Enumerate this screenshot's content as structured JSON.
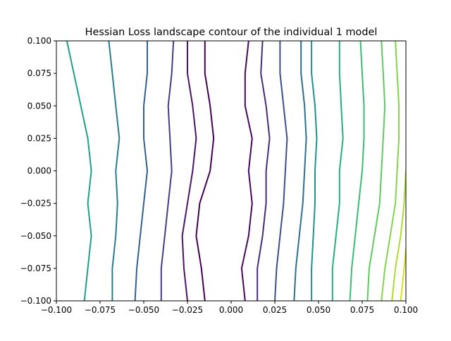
{
  "chart_data": {
    "type": "contour",
    "title": "Hessian Loss landscape contour of the individual 1 model",
    "xlabel": "",
    "ylabel": "",
    "xlim": [
      -0.1,
      0.1
    ],
    "ylim": [
      -0.1,
      0.1
    ],
    "xticks": [
      -0.1,
      -0.075,
      -0.05,
      -0.025,
      0.0,
      0.025,
      0.05,
      0.075,
      0.1
    ],
    "xtick_labels": [
      "−0.100",
      "−0.075",
      "−0.050",
      "−0.025",
      "0.000",
      "0.025",
      "0.050",
      "0.075",
      "0.100"
    ],
    "yticks": [
      -0.1,
      -0.075,
      -0.05,
      -0.025,
      0.0,
      0.025,
      0.05,
      0.075,
      0.1
    ],
    "ytick_labels": [
      "−0.100",
      "−0.075",
      "−0.050",
      "−0.025",
      "0.000",
      "0.025",
      "0.050",
      "0.075",
      "0.100"
    ],
    "colormap": "viridis",
    "grid": false,
    "levels": [
      {
        "level": 1,
        "color": "#440154",
        "points": [
          [
            -0.015,
            -0.1
          ],
          [
            -0.017,
            -0.075
          ],
          [
            -0.02,
            -0.05
          ],
          [
            -0.018,
            -0.025
          ],
          [
            -0.012,
            0.0
          ],
          [
            -0.01,
            0.025
          ],
          [
            -0.012,
            0.05
          ],
          [
            -0.015,
            0.075
          ],
          [
            -0.015,
            0.1
          ]
        ]
      },
      {
        "level": 2,
        "color": "#46085c",
        "points": [
          [
            0.008,
            -0.1
          ],
          [
            0.006,
            -0.075
          ],
          [
            0.01,
            -0.05
          ],
          [
            0.012,
            -0.025
          ],
          [
            0.01,
            0.0
          ],
          [
            0.012,
            0.025
          ],
          [
            0.008,
            0.05
          ],
          [
            0.008,
            0.075
          ],
          [
            0.01,
            0.1
          ]
        ]
      },
      {
        "level": 3,
        "color": "#481568",
        "points": [
          [
            -0.025,
            -0.1
          ],
          [
            -0.027,
            -0.075
          ],
          [
            -0.028,
            -0.05
          ],
          [
            -0.025,
            -0.025
          ],
          [
            -0.022,
            0.0
          ],
          [
            -0.02,
            0.025
          ],
          [
            -0.022,
            0.05
          ],
          [
            -0.025,
            0.075
          ],
          [
            -0.025,
            0.1
          ]
        ]
      },
      {
        "level": 4,
        "color": "#472c7a",
        "points": [
          [
            0.015,
            -0.1
          ],
          [
            0.015,
            -0.075
          ],
          [
            0.018,
            -0.05
          ],
          [
            0.02,
            -0.025
          ],
          [
            0.02,
            0.0
          ],
          [
            0.022,
            0.025
          ],
          [
            0.02,
            0.05
          ],
          [
            0.017,
            0.075
          ],
          [
            0.018,
            0.1
          ]
        ]
      },
      {
        "level": 5,
        "color": "#433d84",
        "points": [
          [
            -0.04,
            -0.1
          ],
          [
            -0.04,
            -0.075
          ],
          [
            -0.038,
            -0.05
          ],
          [
            -0.036,
            -0.025
          ],
          [
            -0.034,
            0.0
          ],
          [
            -0.035,
            0.025
          ],
          [
            -0.036,
            0.05
          ],
          [
            -0.034,
            0.075
          ],
          [
            -0.033,
            0.1
          ]
        ]
      },
      {
        "level": 6,
        "color": "#3d4e8a",
        "points": [
          [
            0.025,
            -0.1
          ],
          [
            0.026,
            -0.075
          ],
          [
            0.028,
            -0.05
          ],
          [
            0.03,
            -0.025
          ],
          [
            0.031,
            0.0
          ],
          [
            0.032,
            0.025
          ],
          [
            0.03,
            0.05
          ],
          [
            0.028,
            0.075
          ],
          [
            0.028,
            0.1
          ]
        ]
      },
      {
        "level": 7,
        "color": "#355f8d",
        "points": [
          [
            -0.055,
            -0.1
          ],
          [
            -0.054,
            -0.075
          ],
          [
            -0.052,
            -0.05
          ],
          [
            -0.05,
            -0.025
          ],
          [
            -0.048,
            0.0
          ],
          [
            -0.05,
            0.025
          ],
          [
            -0.05,
            0.05
          ],
          [
            -0.048,
            0.075
          ],
          [
            -0.048,
            0.1
          ]
        ]
      },
      {
        "level": 8,
        "color": "#2e6e8e",
        "points": [
          [
            0.036,
            -0.1
          ],
          [
            0.037,
            -0.075
          ],
          [
            0.039,
            -0.05
          ],
          [
            0.041,
            -0.025
          ],
          [
            0.042,
            0.0
          ],
          [
            0.043,
            0.025
          ],
          [
            0.042,
            0.05
          ],
          [
            0.04,
            0.075
          ],
          [
            0.04,
            0.1
          ]
        ]
      },
      {
        "level": 9,
        "color": "#287c8e",
        "points": [
          [
            -0.068,
            -0.1
          ],
          [
            -0.068,
            -0.075
          ],
          [
            -0.066,
            -0.05
          ],
          [
            -0.065,
            -0.025
          ],
          [
            -0.066,
            0.0
          ],
          [
            -0.064,
            0.025
          ],
          [
            -0.066,
            0.05
          ],
          [
            -0.068,
            0.075
          ],
          [
            -0.07,
            0.1
          ]
        ]
      },
      {
        "level": 10,
        "color": "#21918c",
        "points": [
          [
            0.046,
            -0.1
          ],
          [
            0.046,
            -0.075
          ],
          [
            0.047,
            -0.05
          ],
          [
            0.048,
            -0.025
          ],
          [
            0.048,
            0.0
          ],
          [
            0.049,
            0.025
          ],
          [
            0.048,
            0.05
          ],
          [
            0.046,
            0.075
          ],
          [
            0.046,
            0.1
          ]
        ]
      },
      {
        "level": 11,
        "color": "#1f9e89",
        "points": [
          [
            -0.084,
            -0.1
          ],
          [
            -0.082,
            -0.075
          ],
          [
            -0.08,
            -0.05
          ],
          [
            -0.082,
            -0.025
          ],
          [
            -0.08,
            0.0
          ],
          [
            -0.082,
            0.025
          ],
          [
            -0.086,
            0.05
          ],
          [
            -0.09,
            0.075
          ],
          [
            -0.094,
            0.1
          ]
        ]
      },
      {
        "level": 12,
        "color": "#26ad81",
        "points": [
          [
            0.058,
            -0.1
          ],
          [
            0.058,
            -0.075
          ],
          [
            0.06,
            -0.05
          ],
          [
            0.062,
            -0.025
          ],
          [
            0.062,
            0.0
          ],
          [
            0.064,
            0.025
          ],
          [
            0.063,
            0.05
          ],
          [
            0.062,
            0.075
          ],
          [
            0.062,
            0.1
          ]
        ]
      },
      {
        "level": 13,
        "color": "#3bbb75",
        "points": [
          [
            0.068,
            -0.1
          ],
          [
            0.069,
            -0.075
          ],
          [
            0.071,
            -0.05
          ],
          [
            0.073,
            -0.025
          ],
          [
            0.075,
            0.0
          ],
          [
            0.076,
            0.025
          ],
          [
            0.076,
            0.05
          ],
          [
            0.075,
            0.075
          ],
          [
            0.074,
            0.1
          ]
        ]
      },
      {
        "level": 14,
        "color": "#5ec962",
        "points": [
          [
            0.078,
            -0.1
          ],
          [
            0.079,
            -0.075
          ],
          [
            0.082,
            -0.05
          ],
          [
            0.085,
            -0.025
          ],
          [
            0.086,
            0.0
          ],
          [
            0.087,
            0.025
          ],
          [
            0.088,
            0.05
          ],
          [
            0.087,
            0.075
          ],
          [
            0.086,
            0.1
          ]
        ]
      },
      {
        "level": 15,
        "color": "#84d44b",
        "points": [
          [
            0.086,
            -0.1
          ],
          [
            0.088,
            -0.075
          ],
          [
            0.091,
            -0.05
          ],
          [
            0.094,
            -0.025
          ],
          [
            0.095,
            0.0
          ],
          [
            0.096,
            0.025
          ],
          [
            0.096,
            0.05
          ],
          [
            0.095,
            0.075
          ],
          [
            0.094,
            0.1
          ]
        ]
      },
      {
        "level": 16,
        "color": "#addc30",
        "points": [
          [
            0.092,
            -0.1
          ],
          [
            0.094,
            -0.075
          ],
          [
            0.097,
            -0.05
          ],
          [
            0.099,
            -0.025
          ],
          [
            0.1,
            0.0
          ]
        ]
      },
      {
        "level": 17,
        "color": "#d8e219",
        "points": [
          [
            0.097,
            -0.1
          ],
          [
            0.099,
            -0.075
          ],
          [
            0.1,
            -0.06
          ]
        ]
      }
    ]
  }
}
